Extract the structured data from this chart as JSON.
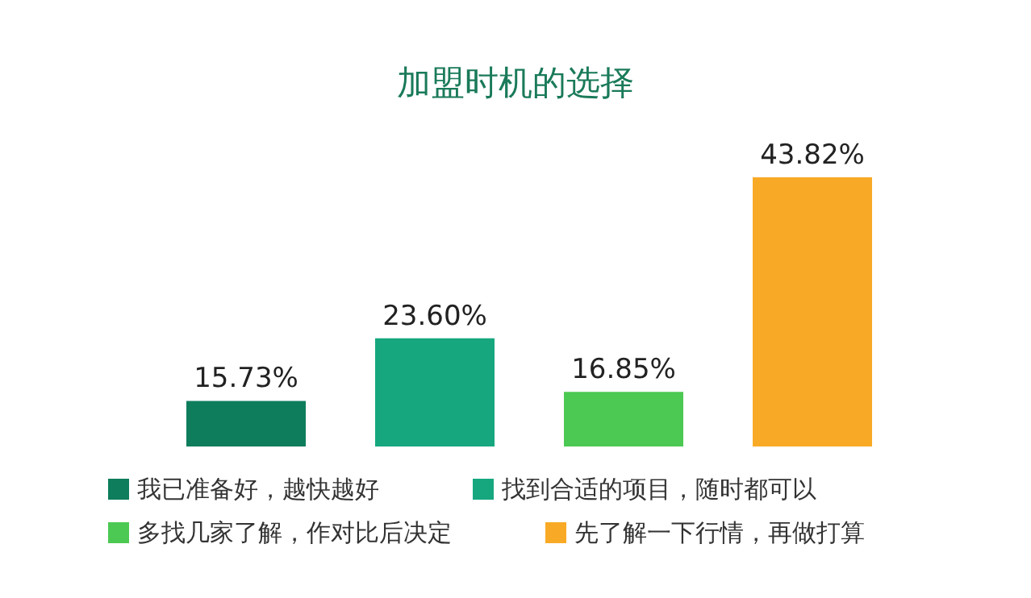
{
  "chart_data": {
    "type": "bar",
    "title": "加盟时机的选择",
    "categories": [
      null,
      null,
      null,
      null
    ],
    "series": [
      {
        "name": "我已准备好，越快越好",
        "color": "#0e7d5c",
        "values": [
          15.73,
          null,
          null,
          null
        ],
        "value_labels": [
          "15.73%",
          null,
          null,
          null
        ]
      },
      {
        "name": "找到合适的项目，随时都可以",
        "color": "#16a77f",
        "values": [
          null,
          23.6,
          null,
          null
        ],
        "value_labels": [
          null,
          "23.60%",
          null,
          null
        ]
      },
      {
        "name": "多找几家了解，作对比后决定",
        "color": "#4cc952",
        "values": [
          null,
          null,
          16.85,
          null
        ],
        "value_labels": [
          null,
          null,
          "16.85%",
          null
        ]
      },
      {
        "name": "先了解一下行情，再做打算",
        "color": "#f8aa26",
        "values": [
          null,
          null,
          null,
          43.82
        ],
        "value_labels": [
          null,
          null,
          null,
          "43.82%"
        ]
      }
    ],
    "stacked": true,
    "ylim": [
      10,
      43.82
    ],
    "legend": "bottom",
    "grid": false,
    "tick_labels": false
  }
}
